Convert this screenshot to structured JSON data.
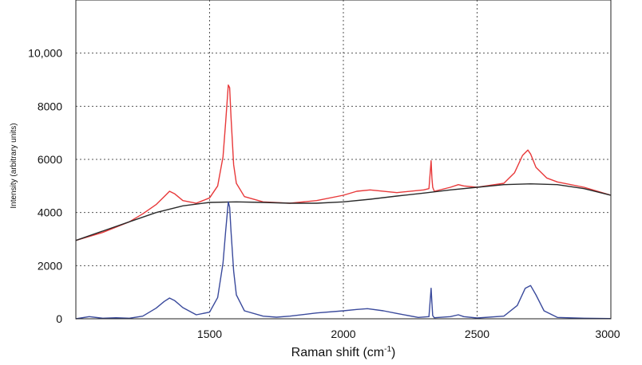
{
  "chart_data": {
    "type": "line",
    "title": "",
    "xlabel": "Raman shift (cm",
    "xlabel_sup": "-1",
    "xlabel_close": ")",
    "ylabel": "Intensity (arbitrary units)",
    "xlim": [
      1000,
      3000
    ],
    "ylim": [
      0,
      12000
    ],
    "grid": true,
    "x_ticks": [
      1500,
      2000,
      2500,
      3000
    ],
    "x_tick_labels": [
      "1500",
      "2000",
      "2500",
      "3000"
    ],
    "y_ticks": [
      0,
      2000,
      4000,
      6000,
      8000,
      10000
    ],
    "y_tick_labels": [
      "0",
      "2000",
      "4000",
      "6000",
      "8000",
      "10,000"
    ],
    "series": [
      {
        "color": "#e8393a",
        "x": [
          1000,
          1100,
          1200,
          1250,
          1300,
          1330,
          1350,
          1370,
          1400,
          1450,
          1500,
          1530,
          1550,
          1560,
          1570,
          1575,
          1580,
          1590,
          1600,
          1630,
          1700,
          1800,
          1900,
          2000,
          2050,
          2100,
          2200,
          2300,
          2320,
          2328,
          2331,
          2334,
          2340,
          2400,
          2430,
          2450,
          2500,
          2600,
          2640,
          2670,
          2690,
          2700,
          2720,
          2760,
          2800,
          2900,
          3000
        ],
        "values": [
          2950,
          3250,
          3650,
          3950,
          4300,
          4600,
          4800,
          4700,
          4450,
          4350,
          4550,
          5000,
          6100,
          7400,
          8800,
          8700,
          7600,
          5800,
          5100,
          4600,
          4400,
          4350,
          4450,
          4650,
          4800,
          4850,
          4750,
          4850,
          4900,
          5950,
          5300,
          4950,
          4800,
          4950,
          5050,
          5000,
          4950,
          5100,
          5500,
          6150,
          6350,
          6200,
          5700,
          5300,
          5150,
          4950,
          4650
        ]
      },
      {
        "color": "#2a2a2a",
        "x": [
          1000,
          1100,
          1200,
          1300,
          1400,
          1500,
          1600,
          1700,
          1800,
          1900,
          2000,
          2100,
          2200,
          2300,
          2400,
          2500,
          2600,
          2700,
          2800,
          2900,
          3000
        ],
        "values": [
          2950,
          3300,
          3650,
          4000,
          4250,
          4380,
          4400,
          4380,
          4350,
          4350,
          4400,
          4500,
          4620,
          4730,
          4850,
          4950,
          5050,
          5080,
          5050,
          4900,
          4650
        ]
      },
      {
        "color": "#3a4a9c",
        "x": [
          1000,
          1050,
          1100,
          1150,
          1200,
          1250,
          1300,
          1330,
          1350,
          1370,
          1400,
          1450,
          1500,
          1530,
          1550,
          1560,
          1570,
          1575,
          1580,
          1590,
          1600,
          1630,
          1700,
          1750,
          1800,
          1900,
          2000,
          2050,
          2090,
          2150,
          2200,
          2280,
          2320,
          2328,
          2331,
          2334,
          2340,
          2400,
          2430,
          2450,
          2500,
          2600,
          2650,
          2680,
          2700,
          2720,
          2750,
          2800,
          2900,
          3000
        ],
        "values": [
          0,
          80,
          20,
          40,
          20,
          100,
          400,
          650,
          780,
          680,
          420,
          150,
          250,
          800,
          2100,
          3300,
          4400,
          4200,
          3300,
          1800,
          900,
          300,
          100,
          60,
          100,
          220,
          300,
          350,
          380,
          300,
          200,
          50,
          80,
          1150,
          600,
          120,
          40,
          80,
          150,
          80,
          30,
          100,
          500,
          1150,
          1250,
          900,
          300,
          50,
          20,
          10
        ]
      }
    ]
  }
}
